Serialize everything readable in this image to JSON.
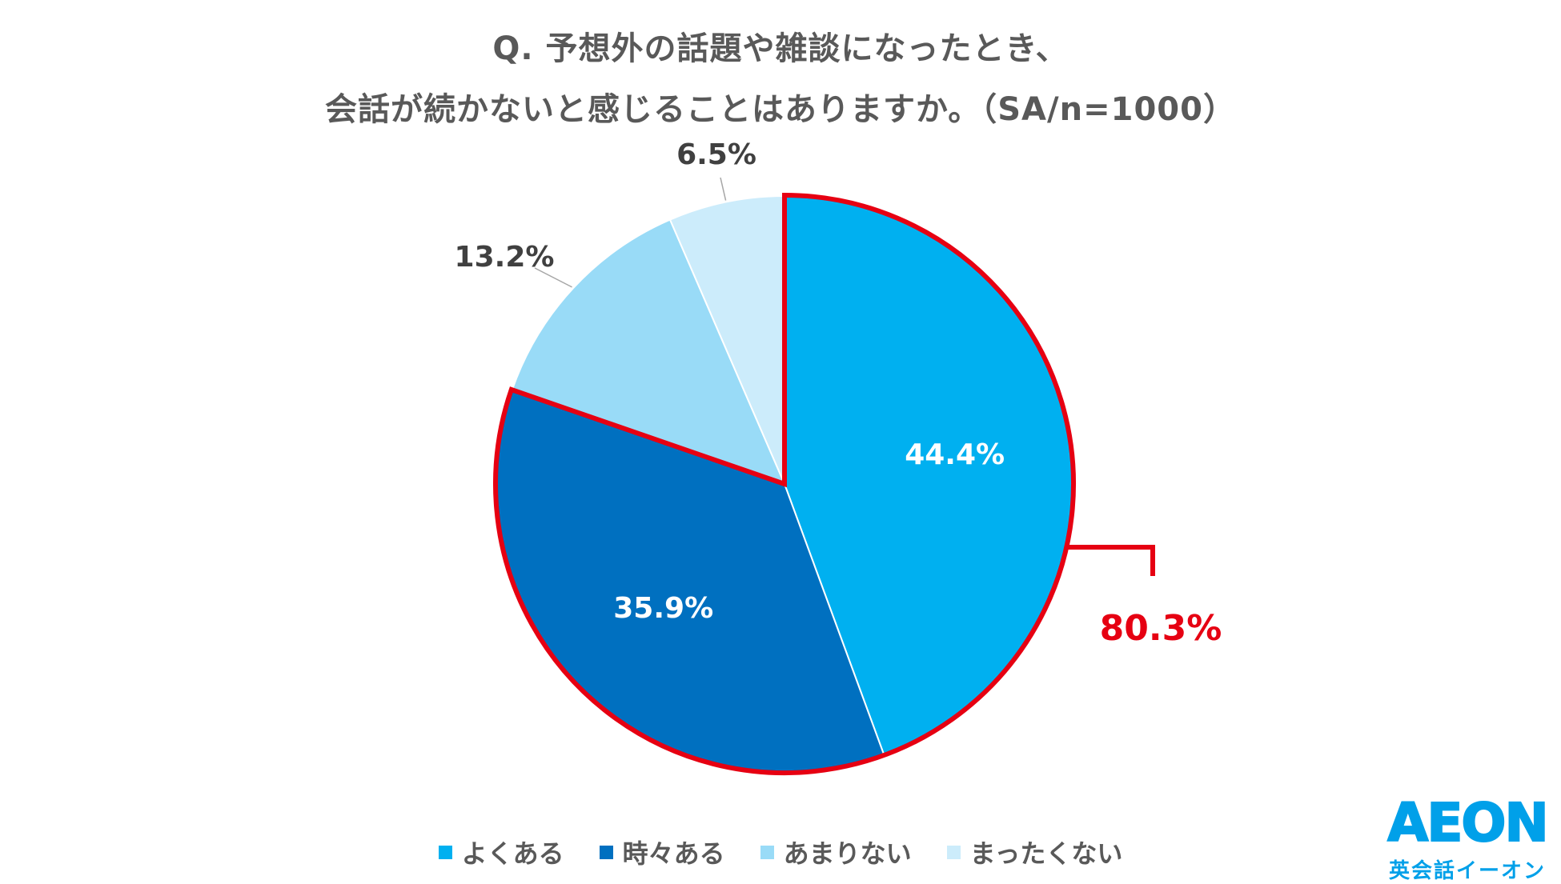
{
  "title": {
    "line1": "Q. 予想外の話題や雑談になったとき、",
    "line2": "会話が続かないと感じることはありますか。（SA/n=1000）"
  },
  "chart_data": {
    "type": "pie",
    "categories": [
      "よくある",
      "時々ある",
      "あまりない",
      "まったくない"
    ],
    "values": [
      44.4,
      35.9,
      13.2,
      6.5
    ],
    "value_labels": [
      "44.4%",
      "35.9%",
      "13.2%",
      "6.5%"
    ],
    "colors": [
      "#00b0f0",
      "#0070c0",
      "#99dbf7",
      "#ccecfb"
    ],
    "highlight": {
      "label": "80.3%",
      "value": 80.3,
      "includes": [
        "よくある",
        "時々ある"
      ],
      "color": "#e60012"
    },
    "legend_position": "bottom"
  },
  "logo": {
    "name": "AEON",
    "subtitle": "英会話イーオン"
  }
}
